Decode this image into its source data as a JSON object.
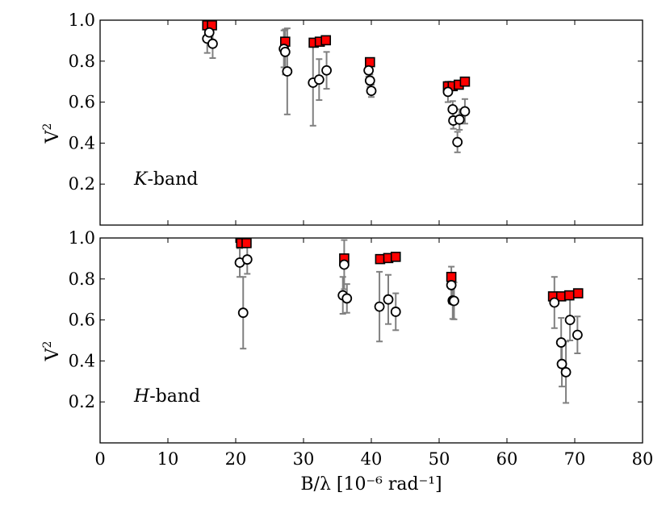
{
  "chart_data": [
    {
      "type": "scatter",
      "panel": "top",
      "ylabel": "V",
      "ylabel_sup": "2",
      "band_letter": "K",
      "band_suffix": "-band",
      "xlim": [
        0,
        80
      ],
      "ylim": [
        0,
        1.0
      ],
      "yticks": [
        "0.2",
        "0.4",
        "0.6",
        "0.8",
        "1.0"
      ],
      "grid": false,
      "series": [
        {
          "marker": "square-filled",
          "color": "#ff0000",
          "points": [
            {
              "x": 15.8,
              "y": 0.975
            },
            {
              "x": 16.5,
              "y": 0.975
            },
            {
              "x": 27.3,
              "y": 0.895
            },
            {
              "x": 31.5,
              "y": 0.89
            },
            {
              "x": 32.4,
              "y": 0.895
            },
            {
              "x": 33.3,
              "y": 0.902
            },
            {
              "x": 39.8,
              "y": 0.795
            },
            {
              "x": 51.3,
              "y": 0.677
            },
            {
              "x": 52.0,
              "y": 0.678
            },
            {
              "x": 52.9,
              "y": 0.685
            },
            {
              "x": 53.8,
              "y": 0.7
            }
          ]
        },
        {
          "marker": "circle-open",
          "color": "#000000",
          "points": [
            {
              "x": 15.8,
              "y": 0.91,
              "err": 0.07
            },
            {
              "x": 16.1,
              "y": 0.94,
              "err": 0.04
            },
            {
              "x": 16.6,
              "y": 0.885,
              "err": 0.07
            },
            {
              "x": 27.1,
              "y": 0.86,
              "err": 0.09
            },
            {
              "x": 27.3,
              "y": 0.845,
              "err": 0.11
            },
            {
              "x": 27.6,
              "y": 0.75,
              "err": 0.21
            },
            {
              "x": 31.4,
              "y": 0.695,
              "err": 0.21
            },
            {
              "x": 32.3,
              "y": 0.71,
              "err": 0.1
            },
            {
              "x": 33.4,
              "y": 0.755,
              "err": 0.09
            },
            {
              "x": 39.6,
              "y": 0.755,
              "err": 0.03
            },
            {
              "x": 39.8,
              "y": 0.705,
              "err": 0.03
            },
            {
              "x": 40.0,
              "y": 0.655,
              "err": 0.03
            },
            {
              "x": 51.3,
              "y": 0.65,
              "err": 0.05
            },
            {
              "x": 52.0,
              "y": 0.565,
              "err": 0.04
            },
            {
              "x": 52.1,
              "y": 0.51,
              "err": 0.04
            },
            {
              "x": 52.7,
              "y": 0.405,
              "err": 0.05
            },
            {
              "x": 53.0,
              "y": 0.515,
              "err": 0.05
            },
            {
              "x": 53.8,
              "y": 0.555,
              "err": 0.06
            }
          ]
        }
      ]
    },
    {
      "type": "scatter",
      "panel": "bottom",
      "ylabel": "V",
      "ylabel_sup": "2",
      "band_letter": "H",
      "band_suffix": "-band",
      "xlabel": "B/λ [10⁻⁶ rad⁻¹]",
      "xlim": [
        0,
        80
      ],
      "ylim": [
        0,
        1.0
      ],
      "xticks": [
        "0",
        "10",
        "20",
        "30",
        "40",
        "50",
        "60",
        "70",
        "80"
      ],
      "yticks": [
        "0.2",
        "0.4",
        "0.6",
        "0.8",
        "1.0"
      ],
      "grid": false,
      "series": [
        {
          "marker": "square-filled",
          "color": "#ff0000",
          "points": [
            {
              "x": 20.8,
              "y": 0.975
            },
            {
              "x": 21.6,
              "y": 0.975
            },
            {
              "x": 36.0,
              "y": 0.9
            },
            {
              "x": 41.3,
              "y": 0.897
            },
            {
              "x": 42.5,
              "y": 0.902
            },
            {
              "x": 43.6,
              "y": 0.908
            },
            {
              "x": 51.8,
              "y": 0.81
            },
            {
              "x": 66.8,
              "y": 0.715
            },
            {
              "x": 68.0,
              "y": 0.715
            },
            {
              "x": 69.2,
              "y": 0.72
            },
            {
              "x": 70.5,
              "y": 0.73
            }
          ]
        },
        {
          "marker": "circle-open",
          "color": "#000000",
          "points": [
            {
              "x": 20.6,
              "y": 0.88,
              "err": 0.07
            },
            {
              "x": 21.1,
              "y": 0.635,
              "err": 0.175
            },
            {
              "x": 21.7,
              "y": 0.895,
              "err": 0.07
            },
            {
              "x": 35.8,
              "y": 0.72,
              "err": 0.09
            },
            {
              "x": 36.0,
              "y": 0.87,
              "err": 0.12
            },
            {
              "x": 36.4,
              "y": 0.705,
              "err": 0.07
            },
            {
              "x": 41.2,
              "y": 0.665,
              "err": 0.17
            },
            {
              "x": 42.5,
              "y": 0.7,
              "err": 0.12
            },
            {
              "x": 43.6,
              "y": 0.64,
              "err": 0.09
            },
            {
              "x": 51.8,
              "y": 0.77,
              "err": 0.09
            },
            {
              "x": 52.0,
              "y": 0.695,
              "err": 0.09
            },
            {
              "x": 52.2,
              "y": 0.693,
              "err": 0.09
            },
            {
              "x": 67.0,
              "y": 0.685,
              "err": 0.125
            },
            {
              "x": 68.0,
              "y": 0.49,
              "err": 0.12
            },
            {
              "x": 68.1,
              "y": 0.385,
              "err": 0.11
            },
            {
              "x": 68.7,
              "y": 0.345,
              "err": 0.15
            },
            {
              "x": 69.3,
              "y": 0.6,
              "err": 0.1
            },
            {
              "x": 70.4,
              "y": 0.527,
              "err": 0.09
            }
          ]
        }
      ]
    }
  ]
}
